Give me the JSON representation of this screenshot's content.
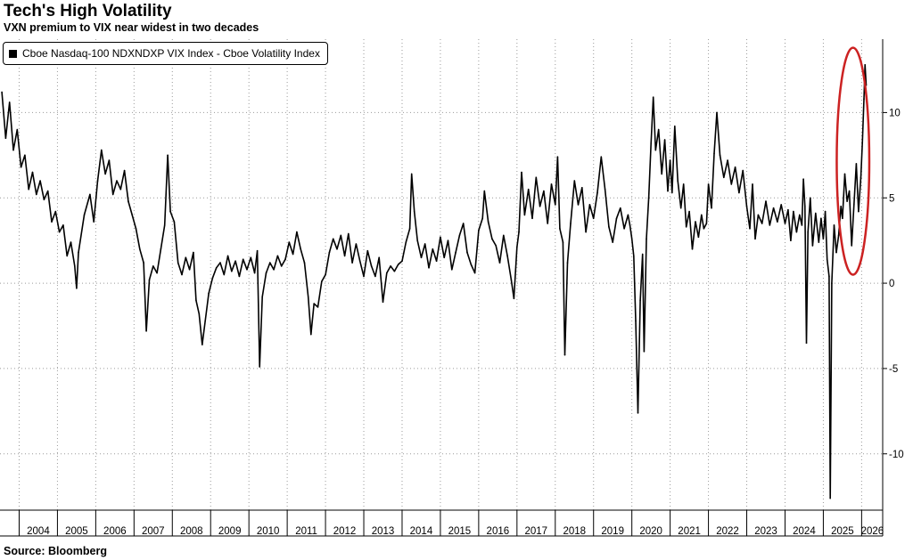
{
  "title": "Tech's High Volatility",
  "subtitle": "VXN premium to VIX near widest in two decades",
  "source": "Source: Bloomberg",
  "chart_data": {
    "type": "line",
    "title": "Tech's High Volatility",
    "subtitle": "VXN premium to VIX near widest in two decades",
    "legend": {
      "position": "top-left",
      "entries": [
        "Cboe Nasdaq-100 NDXNDXP VIX Index - Cboe Volatility Index"
      ]
    },
    "series": [
      {
        "name": "Cboe Nasdaq-100 NDXNDXP VIX Index - Cboe Volatility Index",
        "color": "#000000",
        "points": [
          [
            2003.55,
            11.2
          ],
          [
            2003.65,
            8.5
          ],
          [
            2003.75,
            10.6
          ],
          [
            2003.85,
            7.8
          ],
          [
            2003.95,
            9.0
          ],
          [
            2004.05,
            6.8
          ],
          [
            2004.15,
            7.5
          ],
          [
            2004.25,
            5.5
          ],
          [
            2004.35,
            6.5
          ],
          [
            2004.45,
            5.2
          ],
          [
            2004.55,
            6.0
          ],
          [
            2004.65,
            4.9
          ],
          [
            2004.75,
            5.4
          ],
          [
            2004.85,
            3.6
          ],
          [
            2004.95,
            4.2
          ],
          [
            2005.05,
            3.0
          ],
          [
            2005.15,
            3.4
          ],
          [
            2005.25,
            1.6
          ],
          [
            2005.35,
            2.4
          ],
          [
            2005.45,
            1.0
          ],
          [
            2005.5,
            -0.3
          ],
          [
            2005.55,
            1.8
          ],
          [
            2005.7,
            4.0
          ],
          [
            2005.85,
            5.2
          ],
          [
            2005.95,
            3.6
          ],
          [
            2006.05,
            6.0
          ],
          [
            2006.15,
            7.8
          ],
          [
            2006.25,
            6.4
          ],
          [
            2006.35,
            7.2
          ],
          [
            2006.45,
            5.2
          ],
          [
            2006.55,
            6.0
          ],
          [
            2006.65,
            5.5
          ],
          [
            2006.75,
            6.6
          ],
          [
            2006.85,
            4.8
          ],
          [
            2006.95,
            4.0
          ],
          [
            2007.05,
            3.2
          ],
          [
            2007.15,
            2.0
          ],
          [
            2007.25,
            1.2
          ],
          [
            2007.32,
            -2.8
          ],
          [
            2007.4,
            0.2
          ],
          [
            2007.5,
            1.0
          ],
          [
            2007.6,
            0.6
          ],
          [
            2007.7,
            2.0
          ],
          [
            2007.8,
            3.4
          ],
          [
            2007.88,
            7.5
          ],
          [
            2007.95,
            4.2
          ],
          [
            2008.05,
            3.6
          ],
          [
            2008.15,
            1.2
          ],
          [
            2008.25,
            0.5
          ],
          [
            2008.35,
            1.5
          ],
          [
            2008.45,
            0.8
          ],
          [
            2008.55,
            1.8
          ],
          [
            2008.62,
            -1.0
          ],
          [
            2008.7,
            -1.8
          ],
          [
            2008.78,
            -3.6
          ],
          [
            2008.86,
            -2.2
          ],
          [
            2008.95,
            -0.6
          ],
          [
            2009.05,
            0.3
          ],
          [
            2009.15,
            0.9
          ],
          [
            2009.25,
            1.2
          ],
          [
            2009.35,
            0.5
          ],
          [
            2009.45,
            1.6
          ],
          [
            2009.55,
            0.7
          ],
          [
            2009.65,
            1.3
          ],
          [
            2009.75,
            0.4
          ],
          [
            2009.85,
            1.4
          ],
          [
            2009.95,
            0.8
          ],
          [
            2010.05,
            1.5
          ],
          [
            2010.15,
            0.6
          ],
          [
            2010.22,
            1.9
          ],
          [
            2010.28,
            -4.9
          ],
          [
            2010.35,
            -0.8
          ],
          [
            2010.45,
            0.6
          ],
          [
            2010.55,
            1.2
          ],
          [
            2010.65,
            0.8
          ],
          [
            2010.75,
            1.6
          ],
          [
            2010.85,
            1.0
          ],
          [
            2010.95,
            1.4
          ],
          [
            2011.05,
            2.4
          ],
          [
            2011.15,
            1.7
          ],
          [
            2011.25,
            3.0
          ],
          [
            2011.35,
            2.0
          ],
          [
            2011.45,
            1.2
          ],
          [
            2011.55,
            -0.8
          ],
          [
            2011.62,
            -3.0
          ],
          [
            2011.7,
            -1.2
          ],
          [
            2011.8,
            -1.4
          ],
          [
            2011.9,
            0.1
          ],
          [
            2012.0,
            0.5
          ],
          [
            2012.1,
            1.8
          ],
          [
            2012.2,
            2.6
          ],
          [
            2012.3,
            2.0
          ],
          [
            2012.4,
            2.8
          ],
          [
            2012.5,
            1.6
          ],
          [
            2012.6,
            2.9
          ],
          [
            2012.7,
            1.2
          ],
          [
            2012.8,
            2.3
          ],
          [
            2012.9,
            1.3
          ],
          [
            2013.0,
            0.4
          ],
          [
            2013.1,
            1.9
          ],
          [
            2013.2,
            1.0
          ],
          [
            2013.3,
            0.4
          ],
          [
            2013.4,
            1.5
          ],
          [
            2013.5,
            -1.1
          ],
          [
            2013.6,
            0.6
          ],
          [
            2013.7,
            1.0
          ],
          [
            2013.8,
            0.7
          ],
          [
            2013.9,
            1.1
          ],
          [
            2014.0,
            1.3
          ],
          [
            2014.1,
            2.4
          ],
          [
            2014.2,
            3.2
          ],
          [
            2014.25,
            6.4
          ],
          [
            2014.32,
            4.2
          ],
          [
            2014.4,
            2.5
          ],
          [
            2014.5,
            1.5
          ],
          [
            2014.6,
            2.3
          ],
          [
            2014.7,
            0.9
          ],
          [
            2014.8,
            2.0
          ],
          [
            2014.9,
            1.3
          ],
          [
            2015.0,
            2.7
          ],
          [
            2015.1,
            1.5
          ],
          [
            2015.2,
            2.5
          ],
          [
            2015.3,
            0.8
          ],
          [
            2015.4,
            1.8
          ],
          [
            2015.5,
            2.8
          ],
          [
            2015.6,
            3.5
          ],
          [
            2015.7,
            1.8
          ],
          [
            2015.8,
            1.1
          ],
          [
            2015.9,
            0.6
          ],
          [
            2016.0,
            3.1
          ],
          [
            2016.1,
            3.8
          ],
          [
            2016.15,
            5.4
          ],
          [
            2016.25,
            3.6
          ],
          [
            2016.35,
            2.6
          ],
          [
            2016.45,
            2.2
          ],
          [
            2016.55,
            1.2
          ],
          [
            2016.65,
            2.8
          ],
          [
            2016.75,
            1.6
          ],
          [
            2016.85,
            0.2
          ],
          [
            2016.92,
            -0.9
          ],
          [
            2017.0,
            2.1
          ],
          [
            2017.05,
            3.0
          ],
          [
            2017.12,
            6.5
          ],
          [
            2017.2,
            4.0
          ],
          [
            2017.3,
            5.5
          ],
          [
            2017.4,
            3.8
          ],
          [
            2017.5,
            6.2
          ],
          [
            2017.6,
            4.5
          ],
          [
            2017.7,
            5.4
          ],
          [
            2017.8,
            3.5
          ],
          [
            2017.9,
            5.8
          ],
          [
            2018.0,
            4.6
          ],
          [
            2018.06,
            7.4
          ],
          [
            2018.12,
            3.2
          ],
          [
            2018.2,
            2.4
          ],
          [
            2018.25,
            -4.2
          ],
          [
            2018.32,
            1.2
          ],
          [
            2018.4,
            3.5
          ],
          [
            2018.5,
            6.0
          ],
          [
            2018.6,
            4.6
          ],
          [
            2018.7,
            5.6
          ],
          [
            2018.8,
            3.0
          ],
          [
            2018.9,
            4.6
          ],
          [
            2019.0,
            3.8
          ],
          [
            2019.1,
            5.3
          ],
          [
            2019.2,
            7.4
          ],
          [
            2019.3,
            5.5
          ],
          [
            2019.4,
            3.3
          ],
          [
            2019.5,
            2.4
          ],
          [
            2019.6,
            3.8
          ],
          [
            2019.7,
            4.4
          ],
          [
            2019.8,
            3.2
          ],
          [
            2019.9,
            4.0
          ],
          [
            2019.95,
            3.4
          ],
          [
            2020.0,
            2.6
          ],
          [
            2020.05,
            1.6
          ],
          [
            2020.1,
            -2.2
          ],
          [
            2020.16,
            -7.6
          ],
          [
            2020.22,
            -1.0
          ],
          [
            2020.28,
            1.7
          ],
          [
            2020.32,
            -4.0
          ],
          [
            2020.38,
            2.6
          ],
          [
            2020.44,
            5.0
          ],
          [
            2020.5,
            8.2
          ],
          [
            2020.56,
            10.9
          ],
          [
            2020.62,
            7.8
          ],
          [
            2020.7,
            9.0
          ],
          [
            2020.78,
            6.4
          ],
          [
            2020.86,
            8.4
          ],
          [
            2020.94,
            5.4
          ],
          [
            2021.0,
            7.2
          ],
          [
            2021.05,
            5.3
          ],
          [
            2021.12,
            9.2
          ],
          [
            2021.2,
            6.0
          ],
          [
            2021.28,
            4.4
          ],
          [
            2021.35,
            5.8
          ],
          [
            2021.42,
            3.3
          ],
          [
            2021.5,
            4.2
          ],
          [
            2021.58,
            2.0
          ],
          [
            2021.66,
            3.6
          ],
          [
            2021.74,
            2.7
          ],
          [
            2021.82,
            4.0
          ],
          [
            2021.88,
            3.2
          ],
          [
            2021.95,
            3.5
          ],
          [
            2022.0,
            5.8
          ],
          [
            2022.08,
            4.4
          ],
          [
            2022.15,
            7.6
          ],
          [
            2022.22,
            10.0
          ],
          [
            2022.3,
            7.5
          ],
          [
            2022.4,
            6.2
          ],
          [
            2022.5,
            7.2
          ],
          [
            2022.6,
            5.8
          ],
          [
            2022.7,
            6.8
          ],
          [
            2022.8,
            5.3
          ],
          [
            2022.9,
            6.6
          ],
          [
            2023.0,
            4.5
          ],
          [
            2023.08,
            3.2
          ],
          [
            2023.15,
            5.8
          ],
          [
            2023.22,
            2.6
          ],
          [
            2023.3,
            4.0
          ],
          [
            2023.4,
            3.5
          ],
          [
            2023.5,
            4.8
          ],
          [
            2023.6,
            3.4
          ],
          [
            2023.7,
            4.4
          ],
          [
            2023.8,
            3.6
          ],
          [
            2023.9,
            4.6
          ],
          [
            2024.0,
            3.5
          ],
          [
            2024.08,
            4.3
          ],
          [
            2024.15,
            2.5
          ],
          [
            2024.22,
            4.2
          ],
          [
            2024.3,
            3.0
          ],
          [
            2024.38,
            4.0
          ],
          [
            2024.44,
            3.4
          ],
          [
            2024.48,
            6.1
          ],
          [
            2024.52,
            4.5
          ],
          [
            2024.56,
            -3.5
          ],
          [
            2024.6,
            3.0
          ],
          [
            2024.66,
            5.0
          ],
          [
            2024.72,
            2.2
          ],
          [
            2024.8,
            4.1
          ],
          [
            2024.88,
            2.4
          ],
          [
            2024.94,
            3.8
          ],
          [
            2025.0,
            2.6
          ],
          [
            2025.05,
            4.2
          ],
          [
            2025.1,
            1.4
          ],
          [
            2025.15,
            0.4
          ],
          [
            2025.18,
            -12.6
          ],
          [
            2025.22,
            0.0
          ],
          [
            2025.28,
            3.4
          ],
          [
            2025.34,
            1.8
          ],
          [
            2025.4,
            2.8
          ],
          [
            2025.46,
            4.5
          ],
          [
            2025.5,
            3.8
          ],
          [
            2025.56,
            6.4
          ],
          [
            2025.62,
            4.8
          ],
          [
            2025.68,
            5.4
          ],
          [
            2025.74,
            2.2
          ],
          [
            2025.8,
            4.6
          ],
          [
            2025.86,
            7.0
          ],
          [
            2025.92,
            4.2
          ],
          [
            2025.98,
            6.2
          ],
          [
            2026.02,
            8.2
          ],
          [
            2026.06,
            10.8
          ],
          [
            2026.09,
            12.8
          ],
          [
            2026.12,
            11.6
          ]
        ]
      }
    ],
    "x": {
      "type": "time",
      "min": 2003.5,
      "max": 2026.55,
      "tick_labels": [
        "2004",
        "2005",
        "2006",
        "2007",
        "2008",
        "2009",
        "2010",
        "2011",
        "2012",
        "2013",
        "2014",
        "2015",
        "2016",
        "2017",
        "2018",
        "2019",
        "2020",
        "2021",
        "2022",
        "2023",
        "2024",
        "2025",
        "2026"
      ]
    },
    "y": {
      "min": -13.3,
      "max": 14.3,
      "ticks": [
        -10,
        -5,
        0,
        5,
        10
      ],
      "axis_side": "right"
    },
    "grid": true,
    "annotation": {
      "type": "ellipse",
      "color": "#cc2222",
      "x_range": [
        2025.35,
        2026.2
      ],
      "y_range": [
        0.5,
        13.8
      ]
    }
  }
}
